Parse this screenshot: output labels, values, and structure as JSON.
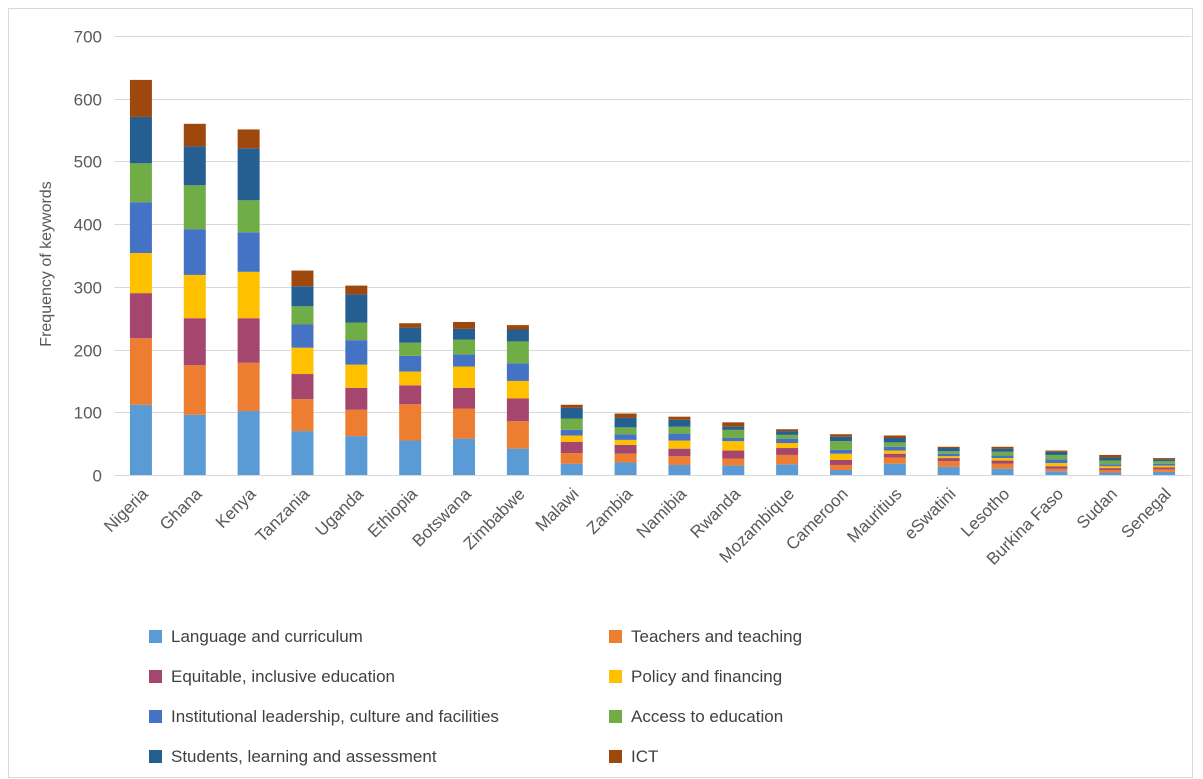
{
  "chart_data": {
    "type": "bar",
    "stacked": true,
    "title": "",
    "xlabel": "",
    "ylabel": "Frequency of keywords",
    "ylim": [
      0,
      700
    ],
    "yticks": [
      0,
      100,
      200,
      300,
      400,
      500,
      600,
      700
    ],
    "grid": true,
    "legend_position": "bottom",
    "categories": [
      "Nigeria",
      "Ghana",
      "Kenya",
      "Tanzania",
      "Uganda",
      "Ethiopia",
      "Botswana",
      "Zimbabwe",
      "Malawi",
      "Zambia",
      "Namibia",
      "Rwanda",
      "Mozambique",
      "Cameroon",
      "Mauritius",
      "eSwatini",
      "Lesotho",
      "Burkina Faso",
      "Sudan",
      "Senegal"
    ],
    "series": [
      {
        "name": "Language and curriculum",
        "color": "#5B9BD5",
        "values": [
          112,
          96,
          102,
          70,
          62,
          55,
          58,
          42,
          18,
          20,
          16,
          15,
          17,
          8,
          18,
          13,
          10,
          6,
          4,
          5
        ]
      },
      {
        "name": "Teachers and teaching",
        "color": "#ED7D31",
        "values": [
          106,
          79,
          77,
          51,
          42,
          58,
          48,
          44,
          17,
          14,
          14,
          11,
          15,
          8,
          10,
          9,
          8,
          4,
          4,
          4
        ]
      },
      {
        "name": "Equitable, inclusive education",
        "color": "#A5466E",
        "values": [
          72,
          75,
          71,
          40,
          35,
          30,
          33,
          36,
          18,
          14,
          12,
          13,
          11,
          8,
          6,
          5,
          5,
          4,
          3,
          3
        ]
      },
      {
        "name": "Policy and financing",
        "color": "#FFC000",
        "values": [
          64,
          69,
          74,
          42,
          37,
          22,
          34,
          28,
          10,
          8,
          13,
          15,
          8,
          10,
          5,
          3,
          4,
          5,
          3,
          3
        ]
      },
      {
        "name": "Institutional leadership, culture and facilities",
        "color": "#4472C4",
        "values": [
          81,
          73,
          63,
          37,
          39,
          25,
          19,
          28,
          9,
          9,
          11,
          5,
          7,
          6,
          6,
          4,
          4,
          6,
          3,
          3
        ]
      },
      {
        "name": "Access to education",
        "color": "#70AD47",
        "values": [
          62,
          70,
          51,
          29,
          28,
          21,
          24,
          35,
          18,
          11,
          11,
          13,
          6,
          14,
          7,
          4,
          6,
          7,
          6,
          4
        ]
      },
      {
        "name": "Students, learning and assessment",
        "color": "#255E91",
        "values": [
          74,
          62,
          83,
          32,
          45,
          24,
          17,
          19,
          17,
          15,
          11,
          5,
          6,
          7,
          7,
          5,
          5,
          5,
          5,
          3
        ]
      },
      {
        "name": "ICT",
        "color": "#9E480E",
        "values": [
          59,
          36,
          30,
          25,
          14,
          7,
          11,
          7,
          5,
          7,
          5,
          7,
          3,
          4,
          4,
          2,
          3,
          2,
          4,
          2
        ]
      }
    ]
  }
}
